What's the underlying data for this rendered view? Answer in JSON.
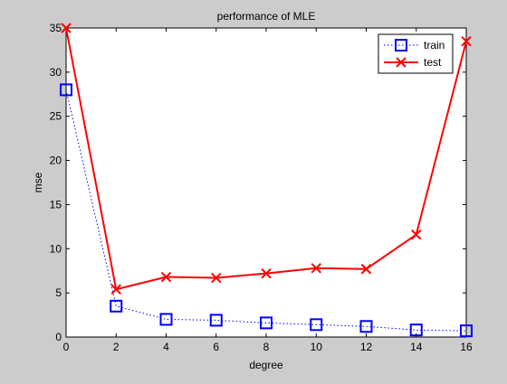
{
  "chart_data": {
    "type": "line",
    "title": "performance of MLE",
    "xlabel": "degree",
    "ylabel": "mse",
    "xlim": [
      0,
      16
    ],
    "ylim": [
      0,
      35
    ],
    "xticks": [
      0,
      2,
      4,
      6,
      8,
      10,
      12,
      14,
      16
    ],
    "yticks": [
      0,
      5,
      10,
      15,
      20,
      25,
      30,
      35
    ],
    "grid": false,
    "legend_position": "top-right",
    "x": [
      0,
      2,
      4,
      6,
      8,
      10,
      12,
      14,
      16
    ],
    "series": [
      {
        "name": "train",
        "values": [
          28.0,
          3.5,
          2.0,
          1.9,
          1.6,
          1.4,
          1.2,
          0.8,
          0.7
        ],
        "color": "#0000ff",
        "line_style": "dotted",
        "marker": "square"
      },
      {
        "name": "test",
        "values": [
          35.0,
          5.4,
          6.8,
          6.7,
          7.2,
          7.8,
          7.7,
          11.6,
          33.5
        ],
        "color": "#ff0000",
        "line_style": "solid",
        "marker": "x"
      }
    ]
  }
}
